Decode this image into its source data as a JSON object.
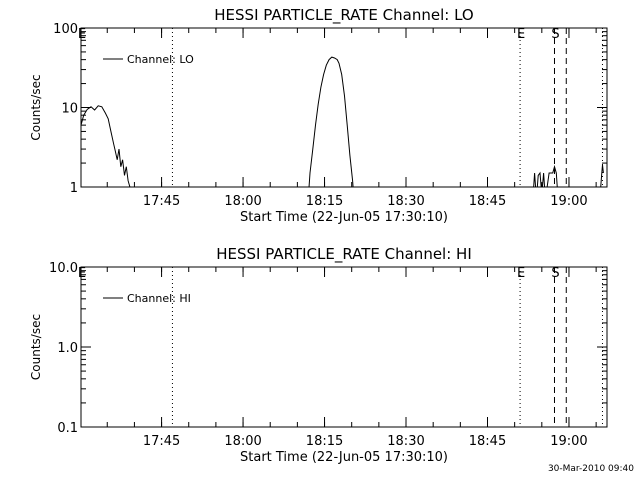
{
  "timestamp": "30-Mar-2010 09:40",
  "chart_data": [
    {
      "type": "line",
      "title": "HESSI PARTICLE_RATE Channel: LO",
      "xlabel": "Start Time (22-Jun-05 17:30:10)",
      "ylabel": "Counts/sec",
      "yscale": "log",
      "ylim": [
        1,
        100
      ],
      "y_ticks": [
        "1",
        "10",
        "100"
      ],
      "xlim": [
        "17:30:10",
        "19:07:00"
      ],
      "x_ticks": [
        "17:45",
        "18:00",
        "18:15",
        "18:30",
        "18:45",
        "19:00"
      ],
      "legend": {
        "label": "Channel: LO",
        "position": "top-left"
      },
      "markers": [
        {
          "time": "17:30:10",
          "label": "E",
          "style": "none"
        },
        {
          "time": "17:47:00",
          "label": "",
          "style": "dotted"
        },
        {
          "time": "18:51:00",
          "label": "E",
          "style": "dotted"
        },
        {
          "time": "18:57:20",
          "label": "S",
          "style": "dashed"
        },
        {
          "time": "18:59:30",
          "label": "",
          "style": "dashed"
        },
        {
          "time": "19:06:10",
          "label": "",
          "style": "dotted"
        }
      ],
      "series": [
        {
          "name": "Channel: LO",
          "points": [
            [
              "17:30:10",
              6.0
            ],
            [
              "17:30:40",
              8.0
            ],
            [
              "17:31:20",
              9.5
            ],
            [
              "17:32:00",
              10.2
            ],
            [
              "17:32:40",
              9.3
            ],
            [
              "17:33:20",
              10.5
            ],
            [
              "17:34:00",
              10.2
            ],
            [
              "17:34:40",
              8.5
            ],
            [
              "17:35:10",
              7.2
            ],
            [
              "17:35:40",
              5.0
            ],
            [
              "17:36:10",
              3.5
            ],
            [
              "17:36:30",
              2.8
            ],
            [
              "17:36:50",
              2.2
            ],
            [
              "17:37:10",
              3.0
            ],
            [
              "17:37:30",
              1.8
            ],
            [
              "17:37:50",
              2.2
            ],
            [
              "17:38:10",
              1.4
            ],
            [
              "17:38:30",
              1.8
            ],
            [
              "17:38:50",
              1.2
            ],
            [
              "17:39:10",
              1.0
            ],
            [
              "17:39:30",
              0.6
            ]
          ]
        },
        {
          "name": "Channel: LO",
          "points": [
            [
              "18:12:00",
              0.7
            ],
            [
              "18:12:20",
              1.5
            ],
            [
              "18:12:50",
              3.0
            ],
            [
              "18:13:20",
              6.0
            ],
            [
              "18:13:50",
              11.0
            ],
            [
              "18:14:20",
              18.0
            ],
            [
              "18:14:50",
              26.0
            ],
            [
              "18:15:20",
              34.0
            ],
            [
              "18:15:50",
              40.0
            ],
            [
              "18:16:20",
              43.0
            ],
            [
              "18:16:50",
              42.0
            ],
            [
              "18:17:20",
              40.0
            ],
            [
              "18:17:40",
              36.0
            ],
            [
              "18:18:10",
              26.0
            ],
            [
              "18:18:40",
              14.0
            ],
            [
              "18:19:10",
              6.0
            ],
            [
              "18:19:40",
              2.5
            ],
            [
              "18:20:10",
              1.2
            ],
            [
              "18:20:30",
              0.6
            ]
          ]
        },
        {
          "name": "Channel: LO",
          "points": [
            [
              "18:53:20",
              0.7
            ],
            [
              "18:53:40",
              1.5
            ],
            [
              "18:54:00",
              0.7
            ],
            [
              "18:54:20",
              1.4
            ],
            [
              "18:54:40",
              1.5
            ],
            [
              "18:55:00",
              0.8
            ],
            [
              "18:55:20",
              1.5
            ],
            [
              "18:55:40",
              0.7
            ],
            [
              "18:56:20",
              1.5
            ],
            [
              "18:57:00",
              1.5
            ],
            [
              "18:57:20",
              1.8
            ],
            [
              "18:57:40",
              1.5
            ],
            [
              "18:58:00",
              0.7
            ]
          ]
        },
        {
          "name": "Channel: LO",
          "points": [
            [
              "19:05:40",
              0.7
            ],
            [
              "19:06:00",
              1.4
            ],
            [
              "19:06:10",
              1.9
            ],
            [
              "19:06:20",
              1.5
            ]
          ]
        }
      ]
    },
    {
      "type": "line",
      "title": "HESSI PARTICLE_RATE Channel: HI",
      "xlabel": "Start Time (22-Jun-05 17:30:10)",
      "ylabel": "Counts/sec",
      "yscale": "log",
      "ylim": [
        0.1,
        10
      ],
      "y_ticks": [
        "0.1",
        "1.0",
        "10.0"
      ],
      "xlim": [
        "17:30:10",
        "19:07:00"
      ],
      "x_ticks": [
        "17:45",
        "18:00",
        "18:15",
        "18:30",
        "18:45",
        "19:00"
      ],
      "legend": {
        "label": "Channel: HI",
        "position": "top-left"
      },
      "markers": [
        {
          "time": "17:30:10",
          "label": "E",
          "style": "none"
        },
        {
          "time": "17:47:00",
          "label": "",
          "style": "dotted"
        },
        {
          "time": "18:51:00",
          "label": "E",
          "style": "dotted"
        },
        {
          "time": "18:57:20",
          "label": "S",
          "style": "dashed"
        },
        {
          "time": "18:59:30",
          "label": "",
          "style": "dashed"
        },
        {
          "time": "19:06:10",
          "label": "",
          "style": "dotted"
        }
      ],
      "series": []
    }
  ]
}
